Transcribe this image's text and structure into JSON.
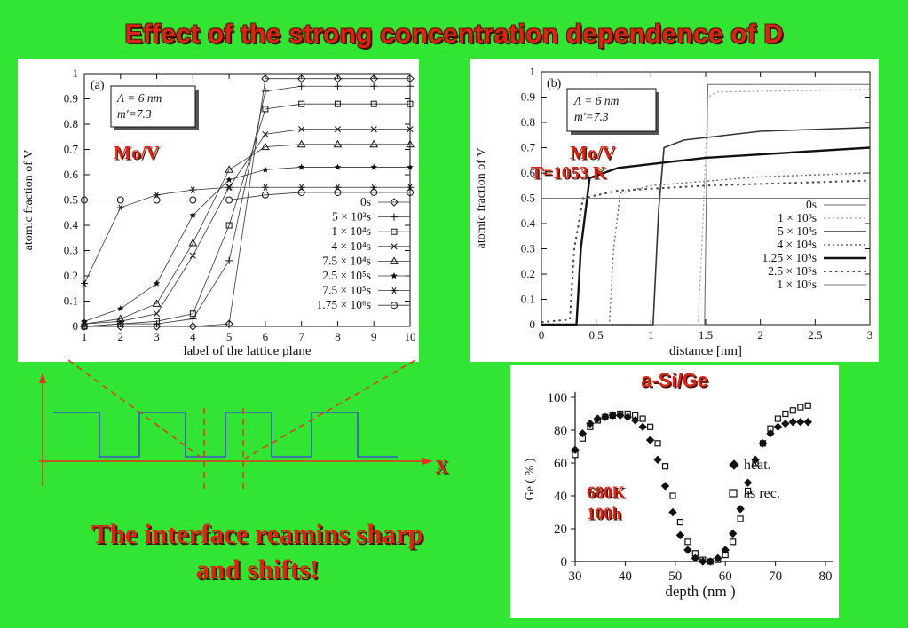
{
  "slide": {
    "title": "Effect of the strong concentration dependence of D",
    "caption_line1": "The interface reamins sharp",
    "caption_line2": "and shifts!",
    "background_color": "#32e532",
    "accent_red": "#d42814"
  },
  "schematic": {
    "x_axis_label": "X",
    "axis_color": "#e8301e",
    "wave_color": "#3c55cc",
    "connector_color": "#e8301e"
  },
  "chart_data": [
    {
      "type": "line",
      "panel_label": "(a)",
      "annotation_lines": [
        "Λ = 6 nm",
        "m'=7.3"
      ],
      "overlay_label": "Mo/V",
      "xlabel": "label of the lattice plane",
      "ylabel": "atomic fraction of V",
      "xlim": [
        1,
        10
      ],
      "ylim": [
        0,
        1
      ],
      "xticks": [
        1,
        2,
        3,
        4,
        5,
        6,
        7,
        8,
        9,
        10
      ],
      "ytick_labels": [
        "0",
        "0.1",
        "0.2",
        "0.3",
        "0.4",
        "0.5",
        "0.6",
        "0.7",
        "0.8",
        "0.9",
        "1"
      ],
      "grid": false,
      "legend_position": "inside-right",
      "x": [
        1,
        2,
        3,
        4,
        5,
        6,
        7,
        8,
        9,
        10
      ],
      "series": [
        {
          "name": "0s",
          "marker": "diamond",
          "values": [
            0,
            0,
            0,
            0,
            0.01,
            0.98,
            0.98,
            0.98,
            0.98,
            0.98
          ]
        },
        {
          "name": "5 × 10³s",
          "marker": "plus",
          "values": [
            0,
            0.01,
            0.01,
            0.03,
            0.26,
            0.93,
            0.95,
            0.95,
            0.95,
            0.95
          ]
        },
        {
          "name": "1 × 10⁴s",
          "marker": "square",
          "values": [
            0,
            0.01,
            0.02,
            0.05,
            0.4,
            0.86,
            0.88,
            0.88,
            0.88,
            0.88
          ]
        },
        {
          "name": "4 × 10⁴s",
          "marker": "x",
          "values": [
            0.01,
            0.02,
            0.05,
            0.28,
            0.55,
            0.76,
            0.78,
            0.78,
            0.78,
            0.78
          ]
        },
        {
          "name": "7.5 × 10⁴s",
          "marker": "triangle",
          "values": [
            0.01,
            0.03,
            0.09,
            0.33,
            0.62,
            0.71,
            0.72,
            0.72,
            0.72,
            0.72
          ]
        },
        {
          "name": "2.5 × 10⁵s",
          "marker": "star",
          "values": [
            0.02,
            0.07,
            0.17,
            0.44,
            0.58,
            0.62,
            0.63,
            0.63,
            0.63,
            0.63
          ]
        },
        {
          "name": "7.5 × 10⁵s",
          "marker": "asterisk",
          "values": [
            0.17,
            0.47,
            0.52,
            0.54,
            0.55,
            0.55,
            0.55,
            0.55,
            0.55,
            0.55
          ]
        },
        {
          "name": "1.75 × 10⁶s",
          "marker": "circle",
          "values": [
            0.5,
            0.5,
            0.5,
            0.5,
            0.5,
            0.52,
            0.53,
            0.53,
            0.53,
            0.53
          ]
        }
      ]
    },
    {
      "type": "line",
      "panel_label": "(b)",
      "annotation_lines": [
        "Λ = 6 nm",
        "m'=7.3"
      ],
      "overlay_label": "Mo/V",
      "overlay_sublabel": "T=1053 K",
      "xlabel": "distance [nm]",
      "ylabel": "atomic fraction of V",
      "xlim": [
        0,
        3
      ],
      "ylim": [
        0,
        1
      ],
      "xticks": [
        0,
        0.5,
        1,
        1.5,
        2,
        2.5,
        3
      ],
      "ytick_labels": [
        "0",
        "0.1",
        "0.2",
        "0.3",
        "0.4",
        "0.5",
        "0.6",
        "0.7",
        "0.8",
        "0.9",
        "1"
      ],
      "grid": false,
      "legend_position": "inside-right",
      "series": [
        {
          "name": "0s",
          "dash": "solid",
          "width": 1,
          "color": "#666",
          "points": [
            [
              0,
              0
            ],
            [
              1.49,
              0
            ],
            [
              1.52,
              0.95
            ],
            [
              3,
              0.95
            ]
          ]
        },
        {
          "name": "1 × 10³s",
          "dash": "dot",
          "width": 1.2,
          "color": "#999",
          "points": [
            [
              0,
              0
            ],
            [
              1.43,
              0
            ],
            [
              1.47,
              0.35
            ],
            [
              1.52,
              0.9
            ],
            [
              1.6,
              0.92
            ],
            [
              3,
              0.93
            ]
          ]
        },
        {
          "name": "5 × 10³s",
          "dash": "solid",
          "width": 1.6,
          "color": "#333",
          "points": [
            [
              0,
              0
            ],
            [
              1.02,
              0
            ],
            [
              1.07,
              0.45
            ],
            [
              1.12,
              0.7
            ],
            [
              1.3,
              0.73
            ],
            [
              2,
              0.765
            ],
            [
              3,
              0.78
            ]
          ]
        },
        {
          "name": "4 × 10⁴s",
          "dash": "dot",
          "width": 1.4,
          "color": "#666",
          "points": [
            [
              0,
              0
            ],
            [
              0.62,
              0
            ],
            [
              0.66,
              0.3
            ],
            [
              0.72,
              0.52
            ],
            [
              1,
              0.55
            ],
            [
              2,
              0.585
            ],
            [
              3,
              0.6
            ]
          ]
        },
        {
          "name": "1.25 × 10⁵s",
          "dash": "solid",
          "width": 2.4,
          "color": "#111",
          "points": [
            [
              0,
              0
            ],
            [
              0.32,
              0
            ],
            [
              0.36,
              0.3
            ],
            [
              0.44,
              0.58
            ],
            [
              0.7,
              0.62
            ],
            [
              1.5,
              0.66
            ],
            [
              3,
              0.7
            ]
          ]
        },
        {
          "name": "2.5 × 10⁵s",
          "dash": "dot",
          "width": 2,
          "color": "#444",
          "points": [
            [
              0,
              0.01
            ],
            [
              0.26,
              0.02
            ],
            [
              0.3,
              0.3
            ],
            [
              0.38,
              0.5
            ],
            [
              0.7,
              0.53
            ],
            [
              1.5,
              0.55
            ],
            [
              3,
              0.57
            ]
          ]
        },
        {
          "name": "1 × 10⁶s",
          "dash": "solid",
          "width": 1,
          "color": "#777",
          "points": [
            [
              0,
              0.5
            ],
            [
              3,
              0.5
            ]
          ]
        }
      ]
    },
    {
      "type": "scatter",
      "title": "a-Si/Ge",
      "note_lines": [
        "680K",
        "100h"
      ],
      "xlabel": "depth (nm )",
      "ylabel": "Ge ( % )",
      "xlim": [
        30,
        80
      ],
      "ylim": [
        0,
        100
      ],
      "xticks": [
        30,
        40,
        50,
        60,
        70,
        80
      ],
      "yticks": [
        0,
        20,
        40,
        60,
        80,
        100
      ],
      "grid": false,
      "legend_position": "inside-right",
      "series": [
        {
          "name": "heat.",
          "marker": "diamond-filled",
          "x": [
            30,
            31.5,
            33,
            34.5,
            36,
            37.5,
            39,
            40.5,
            42,
            43.5,
            45,
            46.5,
            48,
            49.5,
            51,
            52.5,
            54,
            55.5,
            57,
            58.5,
            60,
            61.5,
            63,
            64.5,
            66,
            67.5,
            69,
            70.5,
            72,
            73.5,
            75,
            76.5
          ],
          "y": [
            68,
            78,
            84,
            87,
            88,
            89,
            89,
            88,
            86,
            82,
            74,
            62,
            46,
            30,
            16,
            7,
            2,
            0,
            0,
            2,
            7,
            17,
            32,
            48,
            62,
            72,
            78,
            82,
            84,
            85,
            85,
            85
          ]
        },
        {
          "name": "as rec.",
          "marker": "square-open",
          "x": [
            30,
            31.5,
            33,
            34.5,
            36,
            37.5,
            39,
            40.5,
            42,
            43.5,
            45,
            46.5,
            48,
            49.5,
            51,
            52.5,
            54,
            55.5,
            57,
            58.5,
            60,
            61.5,
            63,
            64.5,
            66,
            67.5,
            69,
            70.5,
            72,
            73.5,
            75,
            76.5
          ],
          "y": [
            65,
            75,
            82,
            86,
            88,
            89,
            90,
            90,
            89,
            87,
            82,
            72,
            58,
            40,
            24,
            12,
            5,
            1,
            0,
            1,
            4,
            12,
            26,
            43,
            60,
            72,
            81,
            87,
            90,
            92,
            94,
            95
          ]
        }
      ]
    }
  ]
}
